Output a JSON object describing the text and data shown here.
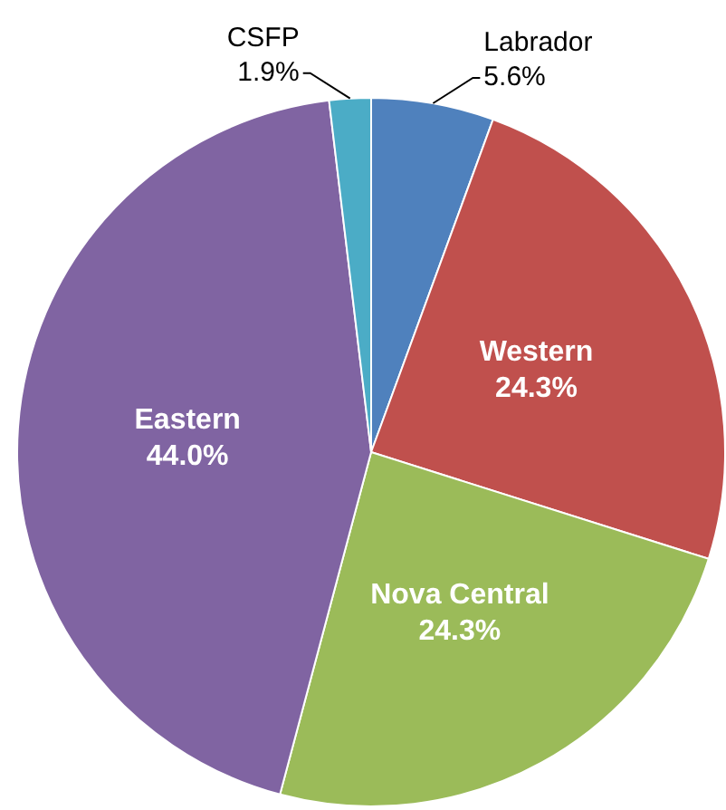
{
  "chart_data": {
    "type": "pie",
    "categories": [
      "Labrador",
      "Western",
      "Nova Central",
      "Eastern",
      "CSFP"
    ],
    "values": [
      5.6,
      24.3,
      24.3,
      44.0,
      1.9
    ],
    "value_labels": [
      "5.6%",
      "24.3%",
      "24.3%",
      "44.0%",
      "1.9%"
    ],
    "colors": [
      "#4f81bd",
      "#c0504d",
      "#9bbb59",
      "#8064a2",
      "#4bacc6"
    ],
    "legend": false
  }
}
